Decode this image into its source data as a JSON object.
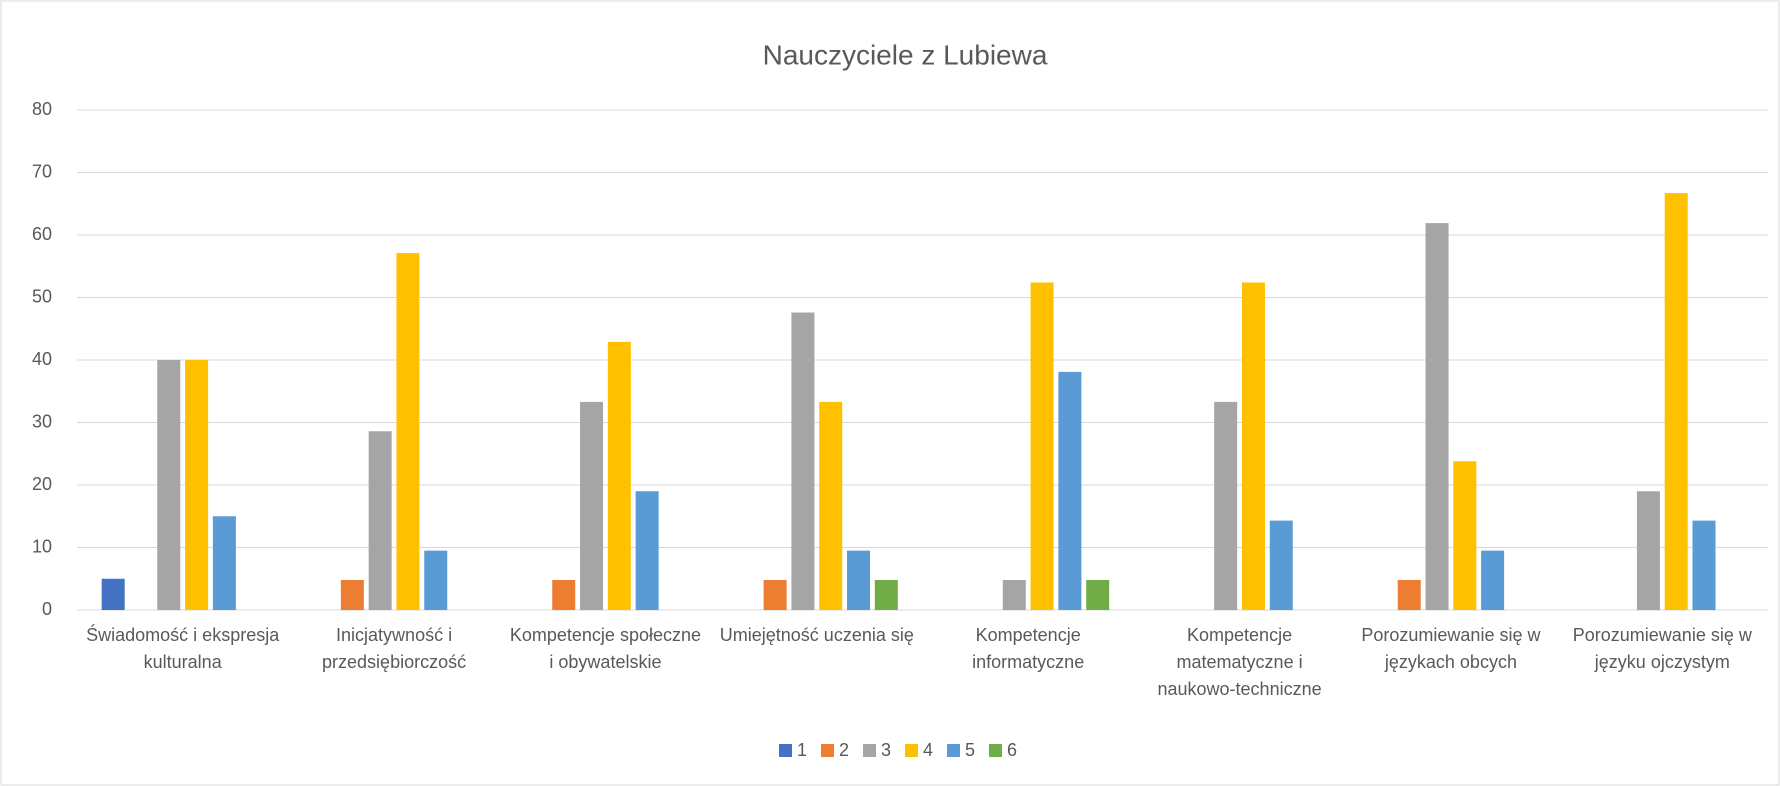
{
  "chart_data": {
    "type": "bar",
    "title": "Nauczyciele z Lubiewa",
    "categories": [
      "Świadomość i ekspresja kulturalna",
      "Inicjatywność i przedsiębiorczość",
      "Kompetencje społeczne i obywatelskie",
      "Umiejętność uczenia się",
      "Kompetencje informatyczne",
      "Kompetencje matematyczne i naukowo-techniczne",
      "Porozumiewanie się w językach obcych",
      "Porozumiewanie się w języku ojczystym"
    ],
    "series": [
      {
        "name": "1",
        "color": "#4472c4",
        "values": [
          5,
          0,
          0,
          0,
          0,
          0,
          0,
          0
        ]
      },
      {
        "name": "2",
        "color": "#ed7d31",
        "values": [
          0,
          4.8,
          4.8,
          4.8,
          0,
          0,
          4.8,
          0
        ]
      },
      {
        "name": "3",
        "color": "#a5a5a5",
        "values": [
          40,
          28.6,
          33.3,
          47.6,
          4.8,
          33.3,
          61.9,
          19
        ]
      },
      {
        "name": "4",
        "color": "#ffc000",
        "values": [
          40,
          57.1,
          42.9,
          33.3,
          52.4,
          52.4,
          23.8,
          66.7
        ]
      },
      {
        "name": "5",
        "color": "#5b9bd5",
        "values": [
          15,
          9.5,
          19,
          9.5,
          38.1,
          14.3,
          9.5,
          14.3
        ]
      },
      {
        "name": "6",
        "color": "#70ad47",
        "values": [
          0,
          0,
          0,
          4.8,
          4.8,
          0,
          0,
          0
        ]
      }
    ],
    "ylim": [
      0,
      80
    ],
    "yticks": [
      0,
      10,
      20,
      30,
      40,
      50,
      60,
      70,
      80
    ],
    "grid": true,
    "legend": "bottom"
  }
}
